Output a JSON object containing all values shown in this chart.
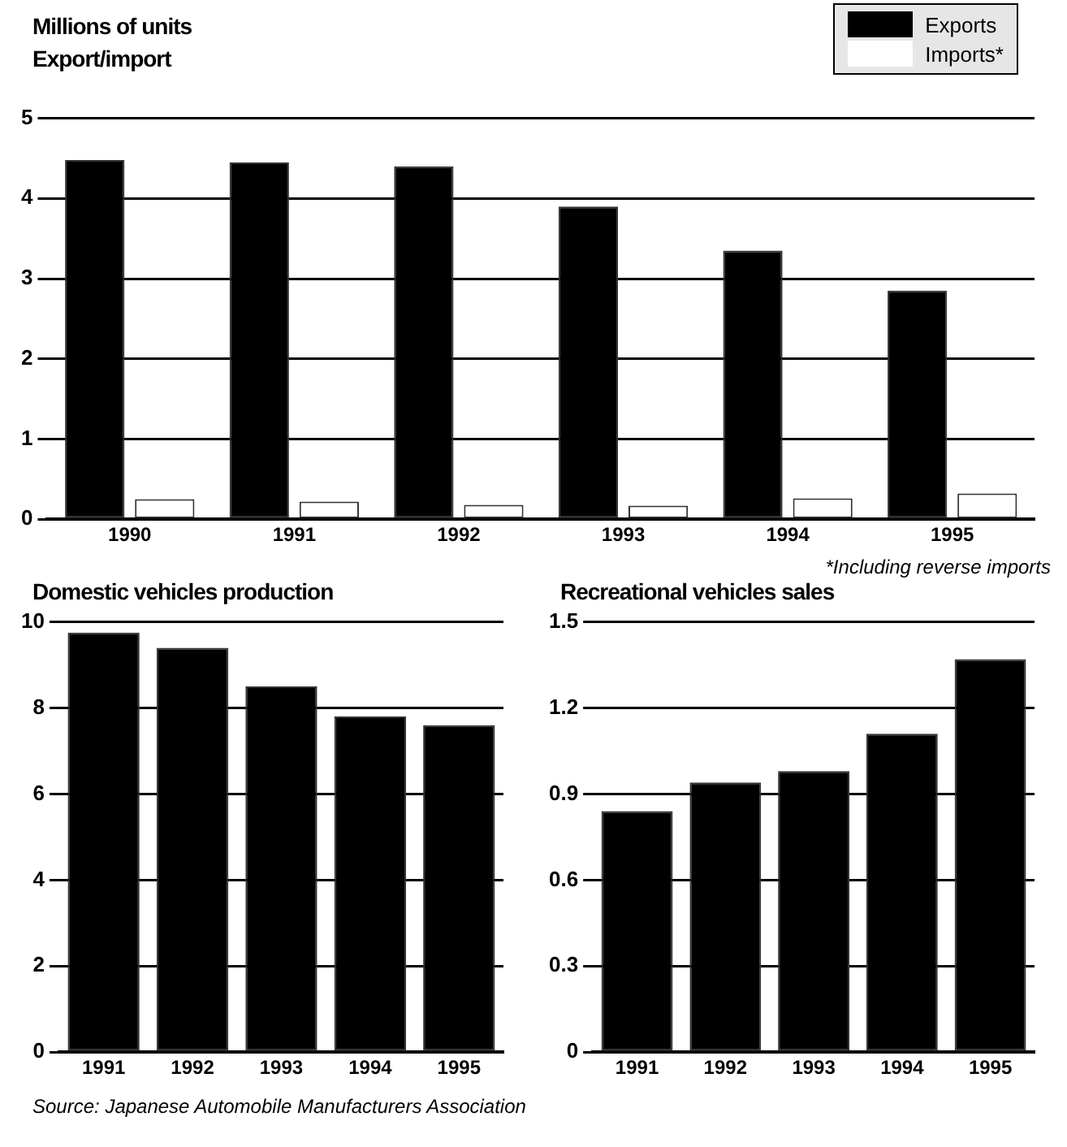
{
  "chart_data": [
    {
      "type": "bar",
      "ylabel": "Millions of units",
      "title": "Export/import",
      "categories": [
        "1990",
        "1991",
        "1992",
        "1993",
        "1994",
        "1995"
      ],
      "series": [
        {
          "name": "Exports",
          "color": "#000000",
          "values": [
            4.48,
            4.45,
            4.4,
            3.9,
            3.35,
            2.85
          ]
        },
        {
          "name": "Imports*",
          "color": "#ffffff",
          "values": [
            0.25,
            0.22,
            0.18,
            0.17,
            0.26,
            0.32
          ]
        }
      ],
      "ylim": [
        0,
        5
      ],
      "yticks": [
        0,
        1,
        2,
        3,
        4,
        5
      ],
      "grid": "y",
      "legend": "top right",
      "annotations": [
        "*Including reverse imports"
      ]
    },
    {
      "type": "bar",
      "title": "Domestic vehicles production",
      "categories": [
        "1991",
        "1992",
        "1993",
        "1994",
        "1995"
      ],
      "values": [
        9.75,
        9.4,
        8.5,
        7.8,
        7.6
      ],
      "color": "#000000",
      "ylim": [
        0,
        10
      ],
      "yticks": [
        0,
        2,
        4,
        6,
        8,
        10
      ],
      "grid": "y",
      "annotations": [
        "Source: Japanese Automobile Manufacturers Association"
      ]
    },
    {
      "type": "bar",
      "title": "Recreational vehicles sales",
      "categories": [
        "1991",
        "1992",
        "1993",
        "1994",
        "1995"
      ],
      "values": [
        0.84,
        0.94,
        0.98,
        1.11,
        1.37
      ],
      "color": "#000000",
      "ylim": [
        0,
        1.5
      ],
      "yticks": [
        0,
        0.3,
        0.6,
        0.9,
        1.2,
        1.5
      ],
      "grid": "y"
    }
  ]
}
